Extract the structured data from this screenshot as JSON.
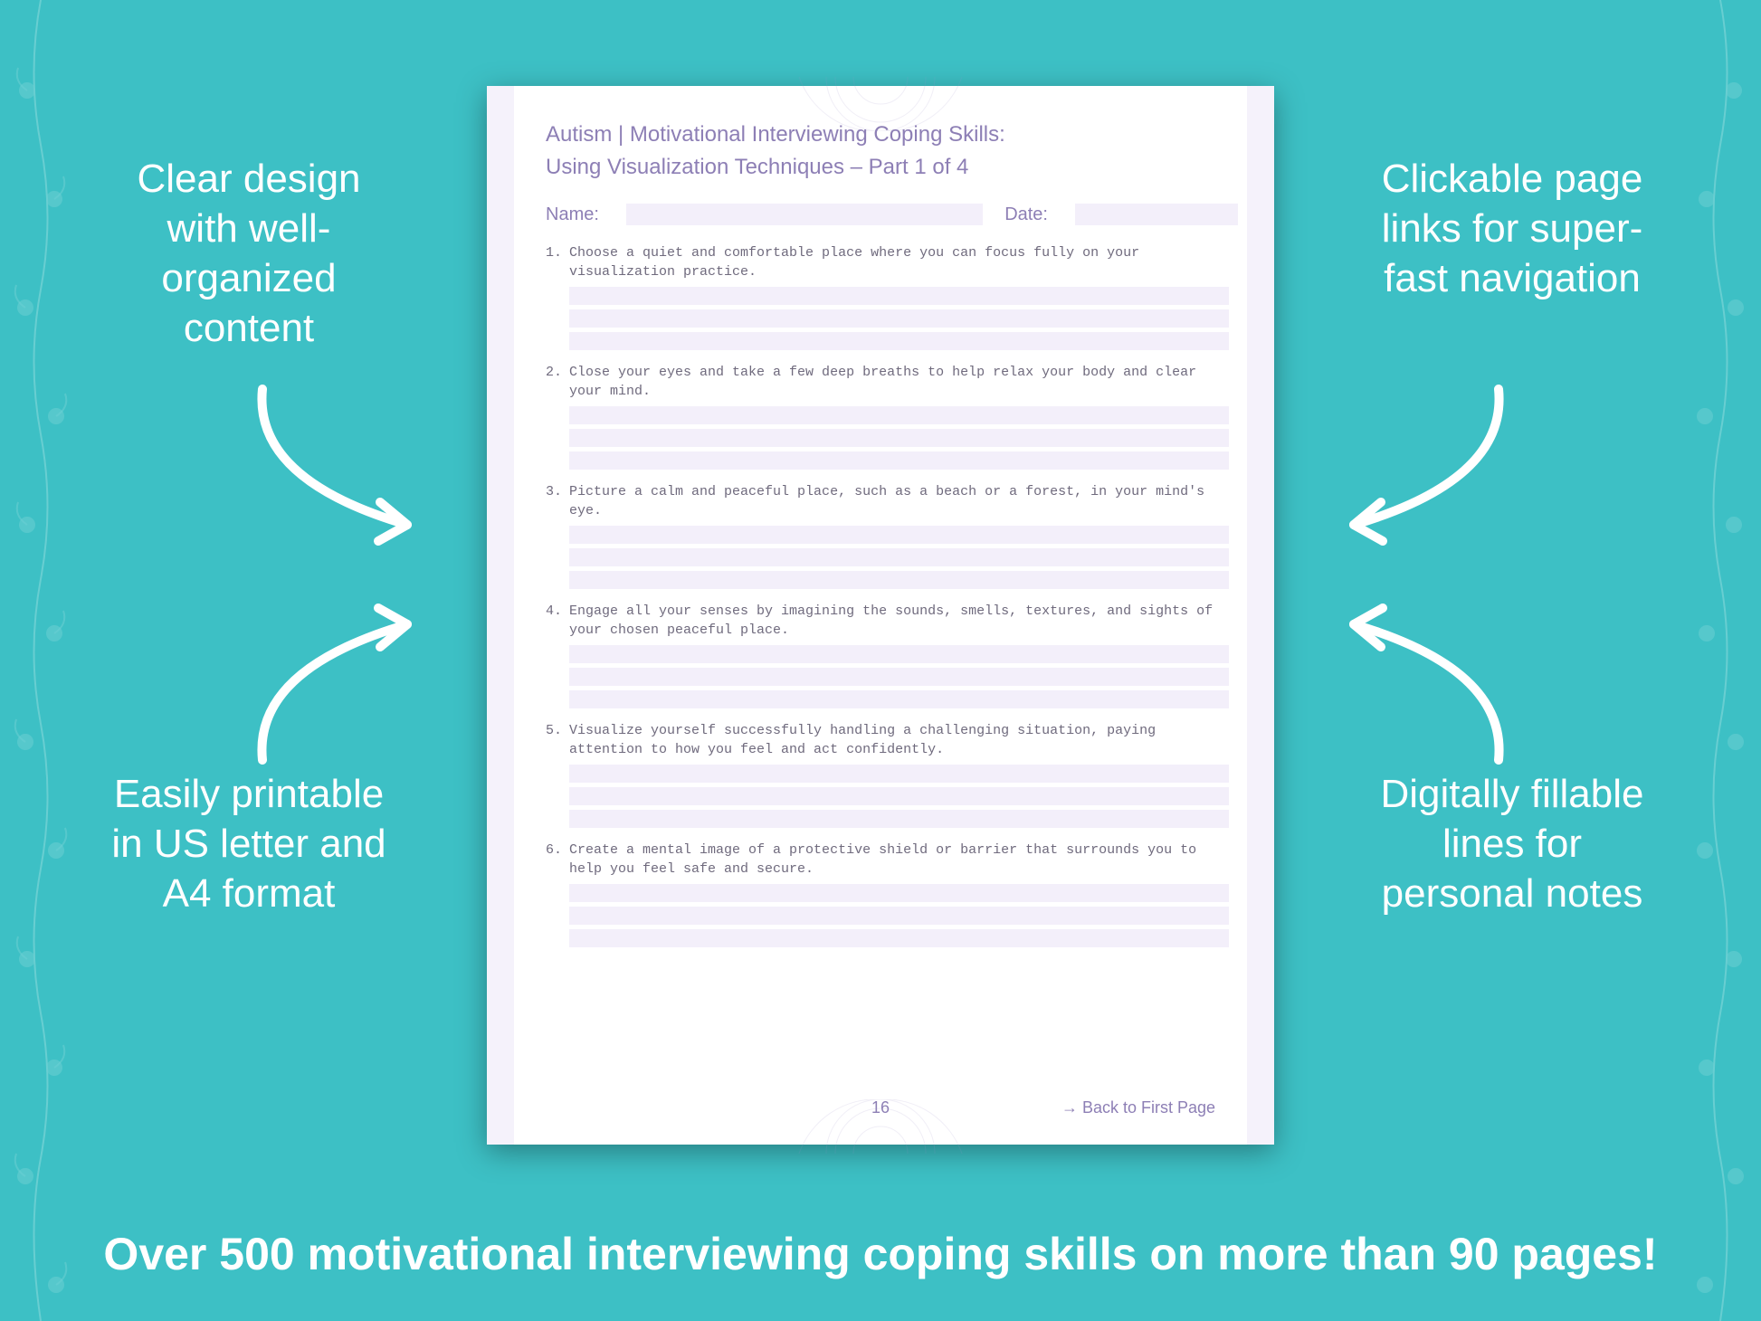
{
  "background_color": "#3dc0c5",
  "callouts": {
    "top_left": "Clear design with well-organized content",
    "top_right": "Clickable page links for super-fast navigation",
    "bottom_left": "Easily printable in US letter and A4 format",
    "bottom_right": "Digitally fillable lines for personal notes"
  },
  "callout_style": {
    "color": "#ffffff",
    "fontsize": 44,
    "font_weight": 400
  },
  "bottom_banner": "Over 500 motivational interviewing coping skills on more than 90 pages!",
  "bottom_banner_style": {
    "color": "#ffffff",
    "fontsize": 50,
    "font_weight": 700
  },
  "arrow_style": {
    "stroke": "#ffffff",
    "stroke_width": 10
  },
  "sheet": {
    "background": "#ffffff",
    "shadow": "0 8px 30px rgba(0,0,0,0.35)",
    "side_stripe_color": "#f5f2fb",
    "accent_color": "#8d7fb5",
    "answer_line_bg": "#f3effa",
    "mandala_color": "#9f92c9",
    "title": "Autism | Motivational Interviewing Coping Skills:",
    "subtitle": "Using Visualization Techniques – Part 1 of 4",
    "name_label": "Name:",
    "date_label": "Date:",
    "title_fontsize": 24,
    "body_font": "Courier New",
    "body_fontsize": 15,
    "body_color": "#6f6a7d",
    "questions": [
      {
        "num": "1.",
        "text": "Choose a quiet and comfortable place where you can focus fully on your visualization practice."
      },
      {
        "num": "2.",
        "text": "Close your eyes and take a few deep breaths to help relax your body and clear your mind."
      },
      {
        "num": "3.",
        "text": "Picture a calm and peaceful place, such as a beach or a forest, in your mind's eye."
      },
      {
        "num": "4.",
        "text": "Engage all your senses by imagining the sounds, smells, textures, and sights of your chosen peaceful place."
      },
      {
        "num": "5.",
        "text": "Visualize yourself successfully handling a challenging situation, paying attention to how you feel and act confidently."
      },
      {
        "num": "6.",
        "text": "Create a mental image of a protective shield or barrier that surrounds you to help you feel safe and secure."
      }
    ],
    "answer_lines_per_question": 3,
    "page_number": "16",
    "back_link": "→ Back to First Page"
  },
  "floral_border": {
    "color": "#ffffff",
    "opacity": 0.22
  }
}
